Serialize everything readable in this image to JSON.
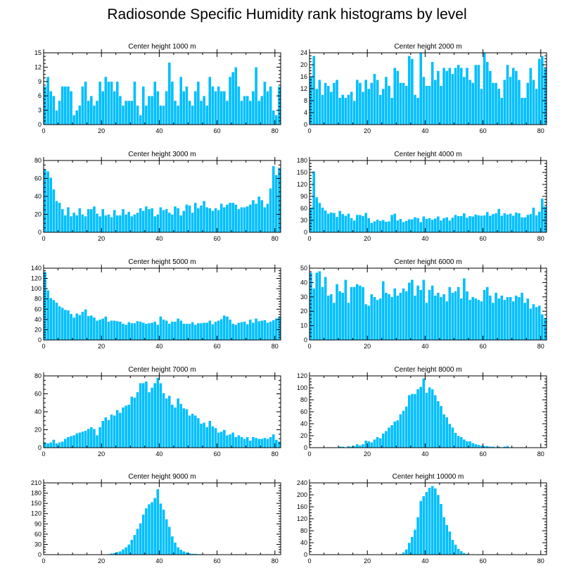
{
  "title": "Radiosonde Specific Humidity rank histograms by level",
  "colors": {
    "bar": "#00bfff",
    "bar_edge": "#ffffff",
    "axis": "#000000"
  },
  "chart_data": [
    {
      "type": "bar",
      "title": "Center height 1000 m",
      "xlim": [
        0,
        82
      ],
      "ylim": [
        0,
        15
      ],
      "xticks": [
        0,
        20,
        40,
        60,
        80
      ],
      "yticks": [
        0,
        3,
        6,
        9,
        12,
        15
      ],
      "x_start": 0,
      "values": [
        8,
        10,
        7,
        6,
        3,
        5,
        8,
        8,
        8,
        7,
        2,
        3,
        4,
        8,
        9,
        5,
        6,
        4,
        5,
        9,
        7,
        10,
        9,
        9,
        7,
        9,
        6,
        4,
        5,
        5,
        5,
        9,
        4,
        2,
        8,
        4,
        6,
        6,
        9,
        7,
        4,
        4,
        7,
        13,
        9,
        5,
        4,
        10,
        7,
        8,
        5,
        4,
        7,
        9,
        5,
        6,
        4,
        10,
        8,
        7,
        8,
        7,
        7,
        5,
        10,
        11,
        12,
        8,
        5,
        6,
        6,
        5,
        7,
        12,
        5,
        6,
        9,
        7,
        8,
        3,
        2,
        8
      ]
    },
    {
      "type": "bar",
      "title": "Center height 2000 m",
      "xlim": [
        0,
        82
      ],
      "ylim": [
        0,
        24
      ],
      "xticks": [
        0,
        20,
        40,
        60,
        80
      ],
      "yticks": [
        0,
        4,
        8,
        12,
        16,
        20,
        24
      ],
      "x_start": 0,
      "values": [
        16,
        23,
        12,
        15,
        10,
        14,
        13,
        11,
        14,
        15,
        9,
        10,
        9,
        10,
        11,
        8,
        15,
        14,
        11,
        15,
        12,
        14,
        17,
        15,
        10,
        12,
        16,
        13,
        9,
        19,
        18,
        14,
        14,
        13,
        23,
        22,
        10,
        9,
        24,
        16,
        13,
        13,
        21,
        15,
        18,
        13,
        19,
        18,
        19,
        17,
        19,
        20,
        19,
        16,
        19,
        15,
        14,
        20,
        20,
        12,
        24,
        21,
        18,
        14,
        14,
        12,
        9,
        15,
        20,
        16,
        19,
        18,
        15,
        9,
        9,
        14,
        19,
        15,
        12,
        22,
        23,
        19
      ]
    },
    {
      "type": "bar",
      "title": "Center height 3000 m",
      "xlim": [
        0,
        82
      ],
      "ylim": [
        0,
        80
      ],
      "xticks": [
        0,
        20,
        40,
        60,
        80
      ],
      "yticks": [
        0,
        20,
        40,
        60,
        80
      ],
      "x_start": 0,
      "values": [
        70,
        68,
        61,
        48,
        35,
        33,
        26,
        19,
        28,
        18,
        22,
        19,
        27,
        20,
        18,
        26,
        26,
        29,
        21,
        18,
        26,
        19,
        20,
        17,
        25,
        19,
        19,
        26,
        20,
        23,
        18,
        20,
        22,
        27,
        24,
        29,
        26,
        27,
        18,
        20,
        28,
        25,
        26,
        22,
        20,
        29,
        27,
        19,
        24,
        31,
        30,
        22,
        33,
        27,
        30,
        35,
        28,
        27,
        24,
        27,
        25,
        32,
        28,
        31,
        33,
        33,
        31,
        26,
        28,
        28,
        29,
        31,
        36,
        32,
        40,
        36,
        28,
        32,
        49,
        74,
        64,
        72
      ]
    },
    {
      "type": "bar",
      "title": "Center height 4000 m",
      "xlim": [
        0,
        82
      ],
      "ylim": [
        0,
        180
      ],
      "xticks": [
        0,
        20,
        40,
        60,
        80
      ],
      "yticks": [
        0,
        30,
        60,
        90,
        120,
        150,
        180
      ],
      "x_start": 0,
      "values": [
        62,
        153,
        88,
        74,
        62,
        55,
        47,
        50,
        49,
        39,
        54,
        46,
        42,
        47,
        36,
        30,
        44,
        44,
        41,
        49,
        36,
        24,
        28,
        32,
        29,
        31,
        27,
        28,
        44,
        47,
        30,
        34,
        26,
        29,
        33,
        33,
        38,
        36,
        26,
        40,
        34,
        36,
        32,
        35,
        40,
        30,
        36,
        38,
        30,
        37,
        44,
        41,
        41,
        48,
        37,
        41,
        40,
        45,
        43,
        42,
        43,
        51,
        42,
        46,
        48,
        59,
        42,
        48,
        45,
        47,
        42,
        50,
        48,
        38,
        38,
        44,
        46,
        62,
        43,
        52,
        85,
        65
      ]
    },
    {
      "type": "bar",
      "title": "Center height 5000 m",
      "xlim": [
        0,
        82
      ],
      "ylim": [
        0,
        140
      ],
      "xticks": [
        0,
        20,
        40,
        60,
        80
      ],
      "yticks": [
        0,
        20,
        40,
        60,
        80,
        100,
        120,
        140
      ],
      "x_start": 0,
      "values": [
        133,
        97,
        82,
        78,
        73,
        66,
        63,
        59,
        58,
        51,
        44,
        52,
        49,
        55,
        60,
        47,
        48,
        44,
        38,
        40,
        42,
        46,
        36,
        38,
        38,
        37,
        36,
        32,
        30,
        35,
        33,
        33,
        37,
        36,
        34,
        32,
        33,
        34,
        36,
        30,
        46,
        40,
        38,
        32,
        36,
        36,
        42,
        38,
        32,
        32,
        32,
        35,
        30,
        33,
        33,
        34,
        34,
        38,
        31,
        36,
        38,
        41,
        48,
        46,
        40,
        32,
        30,
        34,
        35,
        36,
        31,
        40,
        34,
        42,
        37,
        38,
        39,
        34,
        36,
        39,
        42,
        45
      ]
    },
    {
      "type": "bar",
      "title": "Center height 6000 m",
      "xlim": [
        0,
        82
      ],
      "ylim": [
        0,
        50
      ],
      "xticks": [
        0,
        20,
        40,
        60,
        80
      ],
      "yticks": [
        0,
        10,
        20,
        30,
        40,
        50
      ],
      "x_start": 0,
      "values": [
        47,
        36,
        47,
        48,
        37,
        44,
        31,
        32,
        26,
        39,
        34,
        33,
        42,
        26,
        37,
        37,
        39,
        38,
        37,
        25,
        24,
        32,
        30,
        28,
        29,
        41,
        33,
        32,
        30,
        36,
        31,
        33,
        36,
        34,
        40,
        42,
        31,
        38,
        35,
        42,
        26,
        35,
        38,
        31,
        33,
        30,
        32,
        27,
        37,
        33,
        34,
        37,
        29,
        43,
        34,
        28,
        30,
        29,
        28,
        27,
        35,
        37,
        31,
        26,
        33,
        29,
        31,
        28,
        30,
        30,
        27,
        31,
        30,
        33,
        26,
        29,
        22,
        25,
        23,
        24,
        18,
        15
      ]
    },
    {
      "type": "bar",
      "title": "Center height 7000 m",
      "xlim": [
        0,
        82
      ],
      "ylim": [
        0,
        80
      ],
      "xticks": [
        0,
        20,
        40,
        60,
        80
      ],
      "yticks": [
        0,
        20,
        40,
        60,
        80
      ],
      "x_start": 0,
      "values": [
        6,
        5,
        6,
        9,
        5,
        6,
        7,
        10,
        12,
        13,
        14,
        16,
        17,
        18,
        19,
        21,
        23,
        21,
        14,
        23,
        30,
        34,
        31,
        37,
        36,
        42,
        39,
        45,
        47,
        48,
        57,
        56,
        62,
        72,
        72,
        74,
        62,
        67,
        72,
        78,
        72,
        61,
        55,
        58,
        48,
        45,
        55,
        49,
        44,
        43,
        36,
        38,
        36,
        33,
        27,
        28,
        23,
        30,
        24,
        22,
        17,
        18,
        20,
        14,
        15,
        17,
        12,
        14,
        12,
        10,
        12,
        8,
        12,
        11,
        10,
        10,
        11,
        10,
        12,
        15,
        9,
        7
      ]
    },
    {
      "type": "bar",
      "title": "Center height 8000 m",
      "xlim": [
        0,
        82
      ],
      "ylim": [
        0,
        120
      ],
      "xticks": [
        0,
        20,
        40,
        60,
        80
      ],
      "yticks": [
        0,
        20,
        40,
        60,
        80,
        100,
        120
      ],
      "x_start": 0,
      "values": [
        0,
        0,
        0,
        0,
        0,
        0,
        1,
        1,
        0,
        1,
        2,
        2,
        1,
        3,
        2,
        3,
        6,
        4,
        6,
        12,
        11,
        9,
        14,
        18,
        16,
        24,
        28,
        34,
        38,
        44,
        46,
        56,
        62,
        69,
        88,
        90,
        90,
        98,
        102,
        116,
        92,
        101,
        98,
        88,
        78,
        70,
        56,
        51,
        40,
        34,
        25,
        20,
        18,
        14,
        11,
        11,
        8,
        6,
        5,
        4,
        3,
        3,
        2,
        2,
        1,
        2,
        1,
        2,
        3,
        1,
        1,
        0,
        0,
        1,
        1,
        0,
        0,
        0,
        0,
        0,
        0,
        0
      ]
    },
    {
      "type": "bar",
      "title": "Center height 9000 m",
      "xlim": [
        0,
        82
      ],
      "ylim": [
        0,
        210
      ],
      "xticks": [
        0,
        20,
        40,
        60,
        80
      ],
      "yticks": [
        0,
        30,
        60,
        90,
        120,
        150,
        180,
        210
      ],
      "x_start": 0,
      "values": [
        0,
        0,
        0,
        0,
        0,
        0,
        0,
        0,
        0,
        0,
        0,
        0,
        0,
        0,
        0,
        0,
        0,
        0,
        0,
        0,
        0,
        0,
        2,
        4,
        5,
        8,
        10,
        16,
        22,
        30,
        44,
        58,
        76,
        92,
        118,
        136,
        148,
        154,
        166,
        192,
        150,
        132,
        104,
        82,
        54,
        36,
        22,
        15,
        10,
        7,
        5,
        3,
        3,
        2,
        2,
        1,
        1,
        1,
        0,
        1,
        0,
        1,
        0,
        0,
        0,
        0,
        0,
        0,
        0,
        0,
        0,
        0,
        0,
        0,
        0,
        0,
        0,
        0,
        0,
        0,
        0,
        0
      ]
    },
    {
      "type": "bar",
      "title": "Center height 10000 m",
      "xlim": [
        0,
        82
      ],
      "ylim": [
        0,
        240
      ],
      "xticks": [
        0,
        20,
        40,
        60,
        80
      ],
      "yticks": [
        0,
        40,
        80,
        120,
        160,
        200,
        240
      ],
      "x_start": 0,
      "values": [
        0,
        0,
        0,
        0,
        0,
        0,
        0,
        0,
        0,
        0,
        0,
        0,
        0,
        0,
        0,
        0,
        0,
        0,
        0,
        0,
        0,
        0,
        0,
        0,
        0,
        0,
        0,
        0,
        0,
        0,
        1,
        3,
        8,
        18,
        40,
        60,
        84,
        126,
        180,
        196,
        210,
        224,
        230,
        222,
        200,
        170,
        126,
        100,
        78,
        50,
        34,
        20,
        12,
        6,
        3,
        1,
        0,
        0,
        0,
        0,
        0,
        0,
        0,
        0,
        0,
        0,
        0,
        0,
        0,
        0,
        0,
        0,
        0,
        0,
        0,
        0,
        0,
        0,
        0,
        0,
        0,
        0
      ]
    }
  ]
}
